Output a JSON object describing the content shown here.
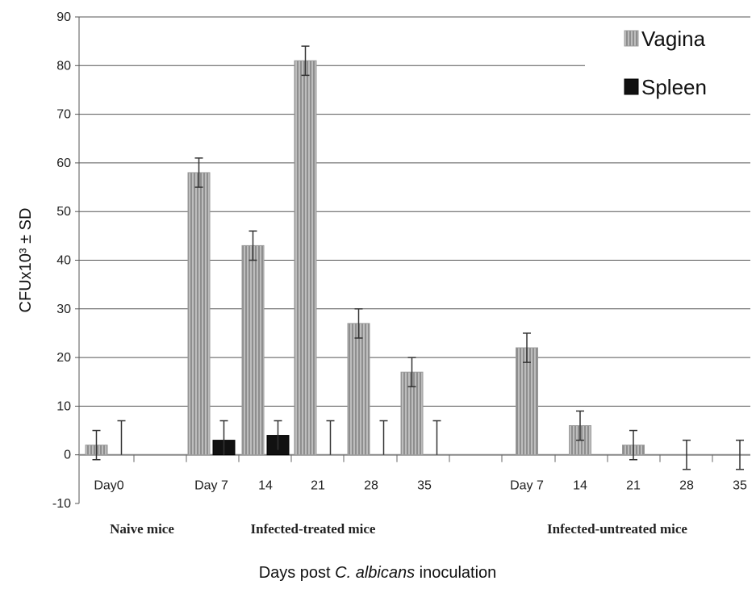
{
  "chart_data": {
    "type": "bar",
    "title": "",
    "ylabel": "CFUx10³ ± SD",
    "xlabel_parts": [
      "Days post ",
      "C. albicans",
      " inoculation"
    ],
    "ylim": [
      -10,
      90
    ],
    "yticks": [
      -10,
      0,
      10,
      20,
      30,
      40,
      50,
      60,
      70,
      80,
      90
    ],
    "grid": true,
    "legend_position": "top-right",
    "categories": [
      "Day0",
      "Day 7",
      "14",
      "21",
      "28",
      "35",
      "Day 7",
      "14",
      "21",
      "28",
      "35"
    ],
    "groups": [
      {
        "label": "Naive mice",
        "categories": [
          "Day0"
        ]
      },
      {
        "label": "Infected-treated mice",
        "categories": [
          "Day 7",
          "14",
          "21",
          "28",
          "35"
        ]
      },
      {
        "label": "Infected-untreated mice",
        "categories": [
          "Day 7",
          "14",
          "21",
          "28",
          "35"
        ]
      }
    ],
    "series": [
      {
        "name": "Vagina",
        "color": "#a8a8a8",
        "values": [
          2,
          58,
          43,
          81,
          27,
          17,
          22,
          6,
          2,
          0,
          0
        ],
        "errors": [
          3,
          3,
          3,
          3,
          3,
          3,
          3,
          3,
          3,
          3,
          3
        ]
      },
      {
        "name": "Spleen",
        "color": "#111111",
        "values": [
          0,
          3,
          4,
          0,
          0,
          0,
          null,
          null,
          null,
          null,
          null
        ],
        "errors": [
          7,
          4,
          3,
          7,
          7,
          7,
          null,
          null,
          null,
          null,
          null
        ]
      }
    ]
  }
}
